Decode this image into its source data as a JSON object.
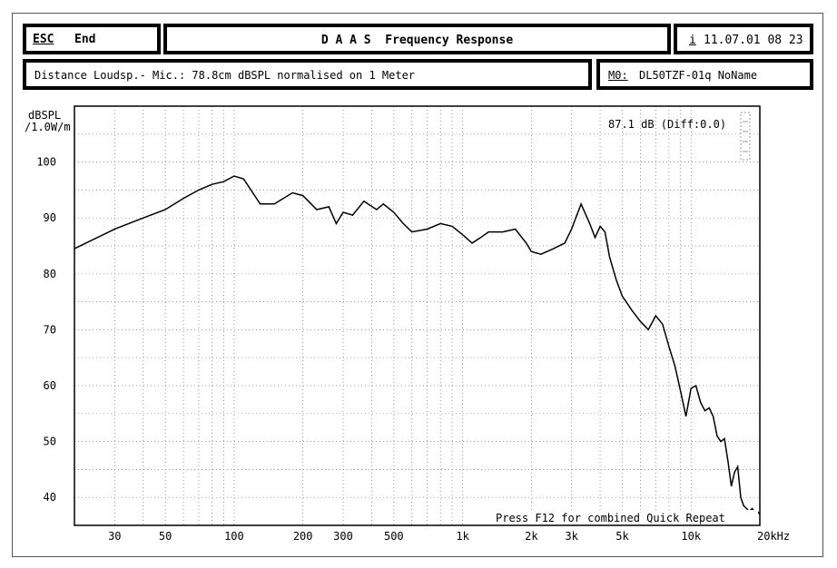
{
  "header": {
    "esc_key": "ESC",
    "esc_label": "End",
    "title": "D A A S  Frequency Response",
    "info_key": "i",
    "datetime": "11.07.01 08 23"
  },
  "subheader": {
    "distance_text": "Distance Loudsp.- Mic.: 78.8cm dBSPL normalised on 1 Meter",
    "mo_key": "M0:",
    "mo_value": "DL50TZF-01q NoName"
  },
  "chart_data": {
    "type": "line",
    "xscale": "log",
    "xlim": [
      20,
      20000
    ],
    "ylim": [
      35,
      110
    ],
    "ylabel": "dBSPL\n/1.0W/m",
    "xunit": "kHz",
    "grid": true,
    "x_ticks": [
      30,
      50,
      100,
      200,
      300,
      500,
      1000,
      2000,
      3000,
      5000,
      10000,
      20000
    ],
    "x_tick_labels": [
      "30",
      "50",
      "100",
      "200",
      "300",
      "500",
      "1k",
      "2k",
      "3k",
      "5k",
      "10k",
      "20k"
    ],
    "y_ticks": [
      40,
      50,
      60,
      70,
      80,
      90,
      100
    ],
    "y_tick_labels": [
      "40",
      "50",
      "60",
      "70",
      "80",
      "90",
      "100"
    ],
    "annotation": "87.1 dB (Diff:0.0)",
    "footer_note": "Press F12 for combined Quick Repeat",
    "series": [
      {
        "x": [
          20,
          30,
          40,
          50,
          60,
          70,
          80,
          90,
          100,
          110,
          130,
          150,
          180,
          200,
          230,
          260,
          280,
          300,
          330,
          370,
          420,
          450,
          500,
          550,
          600,
          700,
          800,
          900,
          1000,
          1100,
          1200,
          1300,
          1500,
          1700,
          1900,
          2000,
          2200,
          2500,
          2800,
          3000,
          3300,
          3600,
          3800,
          4000,
          4200,
          4400,
          4700,
          5000,
          5500,
          6000,
          6500,
          7000,
          7500,
          8000,
          8500,
          9000,
          9500,
          10000,
          10500,
          11000,
          11500,
          12000,
          12500,
          13000,
          13500,
          14000,
          14500,
          15000,
          15500,
          16000,
          16500,
          17000,
          17500,
          18000,
          18500,
          19000,
          19500,
          20000
        ],
        "y": [
          84.5,
          88,
          90,
          91.5,
          93.5,
          95,
          96,
          96.5,
          97.5,
          97,
          92.5,
          92.5,
          94.5,
          94,
          91.5,
          92,
          89,
          91,
          90.5,
          93,
          91.5,
          92.5,
          91,
          89,
          87.5,
          88,
          89,
          88.5,
          87,
          85.5,
          86.5,
          87.5,
          87.5,
          88,
          85.5,
          84,
          83.5,
          84.5,
          85.5,
          88,
          92.5,
          89,
          86.5,
          88.5,
          87.5,
          83,
          79,
          76,
          73.5,
          71.5,
          70,
          72.5,
          71,
          67,
          63.5,
          59,
          54.5,
          59.5,
          60,
          57,
          55.5,
          56,
          54.5,
          51,
          50,
          50.5,
          46.5,
          42,
          44.5,
          45.5,
          40,
          38.5,
          38,
          37.5,
          38,
          37.5,
          37.5,
          37
        ]
      }
    ]
  }
}
